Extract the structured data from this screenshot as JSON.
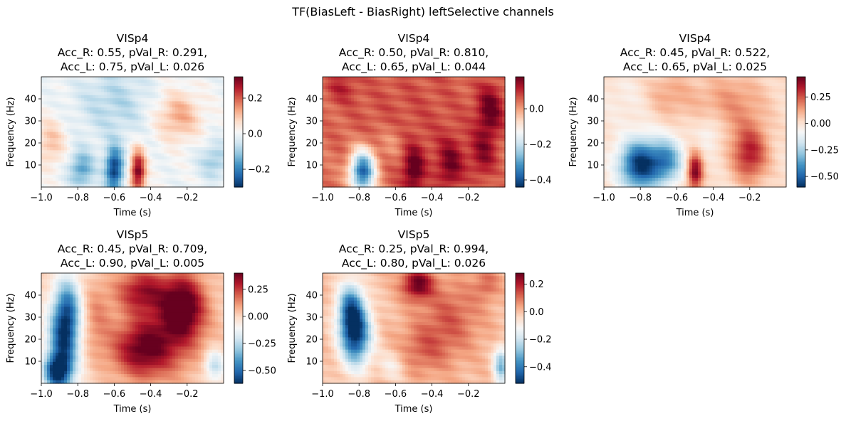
{
  "figure": {
    "suptitle": "TF(BiasLeft - BiasRight) leftSelective channels"
  },
  "colormap": {
    "name": "RdBu_r",
    "stops": [
      "#053061",
      "#2166ac",
      "#4393c3",
      "#92c5de",
      "#d1e5f0",
      "#f7f7f7",
      "#fddbc7",
      "#f4a582",
      "#d6604d",
      "#b2182b",
      "#67001f"
    ]
  },
  "chart_data": [
    {
      "type": "heatmap",
      "title": [
        "VISp4",
        "Acc_R: 0.55, pVal_R: 0.291,",
        "Acc_L: 0.75, pVal_L: 0.026"
      ],
      "xlabel": "Time (s)",
      "ylabel": "Frequency (Hz)",
      "xlim": [
        -1.0,
        0.0
      ],
      "ylim": [
        0,
        50
      ],
      "xticks": [
        -1.0,
        -0.8,
        -0.6,
        -0.4,
        -0.2
      ],
      "xticklabels": [
        "−1.0",
        "−0.8",
        "−0.6",
        "−0.4",
        "−0.2"
      ],
      "yticks": [
        10,
        20,
        30,
        40
      ],
      "yticklabels": [
        "10",
        "20",
        "30",
        "40"
      ],
      "colorbar": {
        "vmin": -0.3,
        "vmax": 0.32,
        "ticks": [
          -0.2,
          0.0,
          0.2
        ],
        "ticklabels": [
          "−0.2",
          "0.0",
          "0.2"
        ]
      },
      "blobs": [
        {
          "t": -0.6,
          "f": 8,
          "st": 0.035,
          "sf": 7,
          "v": -0.29
        },
        {
          "t": -0.47,
          "f": 7,
          "st": 0.03,
          "sf": 7,
          "v": 0.31
        },
        {
          "t": -0.78,
          "f": 8,
          "st": 0.05,
          "sf": 6,
          "v": -0.16
        },
        {
          "t": -0.25,
          "f": 32,
          "st": 0.09,
          "sf": 8,
          "v": 0.13
        },
        {
          "t": -0.95,
          "f": 20,
          "st": 0.06,
          "sf": 8,
          "v": 0.1
        },
        {
          "t": -0.6,
          "f": 38,
          "st": 0.15,
          "sf": 12,
          "v": -0.08
        },
        {
          "t": -0.05,
          "f": 12,
          "st": 0.06,
          "sf": 6,
          "v": -0.1
        }
      ]
    },
    {
      "type": "heatmap",
      "title": [
        "VISp4",
        "Acc_R: 0.50, pVal_R: 0.810,",
        "Acc_L: 0.65, pVal_L: 0.044"
      ],
      "xlabel": "Time (s)",
      "ylabel": "Frequency (Hz)",
      "xlim": [
        -1.0,
        0.0
      ],
      "ylim": [
        0,
        50
      ],
      "xticks": [
        -1.0,
        -0.8,
        -0.6,
        -0.4,
        -0.2
      ],
      "xticklabels": [
        "−1.0",
        "−0.8",
        "−0.6",
        "−0.4",
        "−0.2"
      ],
      "yticks": [
        10,
        20,
        30,
        40
      ],
      "yticklabels": [
        "10",
        "20",
        "30",
        "40"
      ],
      "colorbar": {
        "vmin": -0.44,
        "vmax": 0.18,
        "ticks": [
          -0.4,
          -0.2,
          0.0
        ],
        "ticklabels": [
          "−0.4",
          "−0.2",
          "0.0"
        ]
      },
      "blobs": [
        {
          "t": -0.5,
          "f": 30,
          "st": 0.5,
          "sf": 40,
          "v": 0.07
        },
        {
          "t": -0.78,
          "f": 7,
          "st": 0.05,
          "sf": 7,
          "v": -0.43
        },
        {
          "t": -0.5,
          "f": 8,
          "st": 0.04,
          "sf": 7,
          "v": 0.15
        },
        {
          "t": -0.3,
          "f": 10,
          "st": 0.05,
          "sf": 8,
          "v": 0.12
        },
        {
          "t": -0.08,
          "f": 35,
          "st": 0.05,
          "sf": 8,
          "v": 0.14
        },
        {
          "t": -0.12,
          "f": 15,
          "st": 0.05,
          "sf": 8,
          "v": 0.1
        },
        {
          "t": -0.9,
          "f": 45,
          "st": 0.06,
          "sf": 5,
          "v": 0.06
        },
        {
          "t": -0.62,
          "f": 20,
          "st": 0.05,
          "sf": 6,
          "v": -0.05
        }
      ]
    },
    {
      "type": "heatmap",
      "title": [
        "VISp4",
        "Acc_R: 0.45, pVal_R: 0.522,",
        "Acc_L: 0.65, pVal_L: 0.025"
      ],
      "xlabel": "Time (s)",
      "ylabel": "Frequency (Hz)",
      "xlim": [
        -1.0,
        0.0
      ],
      "ylim": [
        0,
        50
      ],
      "xticks": [
        -1.0,
        -0.8,
        -0.6,
        -0.4,
        -0.2
      ],
      "xticklabels": [
        "−1.0",
        "−0.8",
        "−0.6",
        "−0.4",
        "−0.2"
      ],
      "yticks": [
        10,
        20,
        30,
        40
      ],
      "yticklabels": [
        "10",
        "20",
        "30",
        "40"
      ],
      "colorbar": {
        "vmin": -0.6,
        "vmax": 0.44,
        "ticks": [
          -0.5,
          -0.25,
          0.0,
          0.25
        ],
        "ticklabels": [
          "−0.50",
          "−0.25",
          "0.00",
          "0.25"
        ]
      },
      "blobs": [
        {
          "t": -0.8,
          "f": 10,
          "st": 0.08,
          "sf": 8,
          "v": -0.6
        },
        {
          "t": -0.65,
          "f": 12,
          "st": 0.06,
          "sf": 7,
          "v": -0.35
        },
        {
          "t": -0.5,
          "f": 7,
          "st": 0.03,
          "sf": 6,
          "v": 0.42
        },
        {
          "t": -0.2,
          "f": 15,
          "st": 0.07,
          "sf": 9,
          "v": 0.33
        },
        {
          "t": -0.3,
          "f": 38,
          "st": 0.14,
          "sf": 10,
          "v": 0.15
        },
        {
          "t": -0.65,
          "f": 42,
          "st": 0.1,
          "sf": 8,
          "v": 0.12
        },
        {
          "t": -0.85,
          "f": 40,
          "st": 0.1,
          "sf": 8,
          "v": -0.05
        },
        {
          "t": -0.42,
          "f": 25,
          "st": 0.05,
          "sf": 6,
          "v": -0.1
        }
      ]
    },
    {
      "type": "heatmap",
      "title": [
        "VISp5",
        "Acc_R: 0.45, pVal_R: 0.709,",
        "Acc_L: 0.90, pVal_L: 0.005"
      ],
      "xlabel": "Time (s)",
      "ylabel": "Frequency (Hz)",
      "xlim": [
        -1.0,
        0.0
      ],
      "ylim": [
        0,
        50
      ],
      "xticks": [
        -1.0,
        -0.8,
        -0.6,
        -0.4,
        -0.2
      ],
      "xticklabels": [
        "−1.0",
        "−0.8",
        "−0.6",
        "−0.4",
        "−0.2"
      ],
      "yticks": [
        10,
        20,
        30,
        40
      ],
      "yticklabels": [
        "10",
        "20",
        "30",
        "40"
      ],
      "colorbar": {
        "vmin": -0.62,
        "vmax": 0.4,
        "ticks": [
          -0.5,
          -0.25,
          0.0,
          0.25
        ],
        "ticklabels": [
          "−0.50",
          "−0.25",
          "0.00",
          "0.25"
        ]
      },
      "blobs": [
        {
          "t": -0.88,
          "f": 18,
          "st": 0.06,
          "sf": 14,
          "v": -0.55
        },
        {
          "t": -0.92,
          "f": 5,
          "st": 0.05,
          "sf": 5,
          "v": -0.45
        },
        {
          "t": -0.85,
          "f": 35,
          "st": 0.05,
          "sf": 10,
          "v": -0.3
        },
        {
          "t": -0.45,
          "f": 15,
          "st": 0.12,
          "sf": 9,
          "v": 0.33
        },
        {
          "t": -0.22,
          "f": 35,
          "st": 0.08,
          "sf": 10,
          "v": 0.38
        },
        {
          "t": -0.45,
          "f": 42,
          "st": 0.1,
          "sf": 7,
          "v": 0.28
        },
        {
          "t": -0.3,
          "f": 25,
          "st": 0.15,
          "sf": 15,
          "v": 0.18
        },
        {
          "t": -0.05,
          "f": 8,
          "st": 0.04,
          "sf": 5,
          "v": -0.25
        },
        {
          "t": -0.7,
          "f": 30,
          "st": 0.06,
          "sf": 12,
          "v": 0.12
        }
      ]
    },
    {
      "type": "heatmap",
      "title": [
        "VISp5",
        "Acc_R: 0.25, pVal_R: 0.994,",
        "Acc_L: 0.80, pVal_L: 0.026"
      ],
      "xlabel": "Time (s)",
      "ylabel": "Frequency (Hz)",
      "xlim": [
        -1.0,
        0.0
      ],
      "ylim": [
        0,
        50
      ],
      "xticks": [
        -1.0,
        -0.8,
        -0.6,
        -0.4,
        -0.2
      ],
      "xticklabels": [
        "−1.0",
        "−0.8",
        "−0.6",
        "−0.4",
        "−0.2"
      ],
      "yticks": [
        10,
        20,
        30,
        40
      ],
      "yticklabels": [
        "10",
        "20",
        "30",
        "40"
      ],
      "colorbar": {
        "vmin": -0.52,
        "vmax": 0.28,
        "ticks": [
          -0.4,
          -0.2,
          0.0,
          0.2
        ],
        "ticklabels": [
          "−0.4",
          "−0.2",
          "0.0",
          "0.2"
        ]
      },
      "blobs": [
        {
          "t": -0.82,
          "f": 22,
          "st": 0.06,
          "sf": 10,
          "v": -0.5
        },
        {
          "t": -0.85,
          "f": 35,
          "st": 0.05,
          "sf": 8,
          "v": -0.3
        },
        {
          "t": -0.48,
          "f": 45,
          "st": 0.06,
          "sf": 5,
          "v": 0.27
        },
        {
          "t": -0.3,
          "f": 30,
          "st": 0.12,
          "sf": 12,
          "v": 0.12
        },
        {
          "t": -0.02,
          "f": 8,
          "st": 0.03,
          "sf": 6,
          "v": -0.3
        },
        {
          "t": -0.45,
          "f": 15,
          "st": 0.1,
          "sf": 8,
          "v": 0.1
        },
        {
          "t": -0.62,
          "f": 8,
          "st": 0.05,
          "sf": 5,
          "v": -0.1
        },
        {
          "t": -0.1,
          "f": 45,
          "st": 0.05,
          "sf": 5,
          "v": 0.1
        }
      ]
    }
  ]
}
